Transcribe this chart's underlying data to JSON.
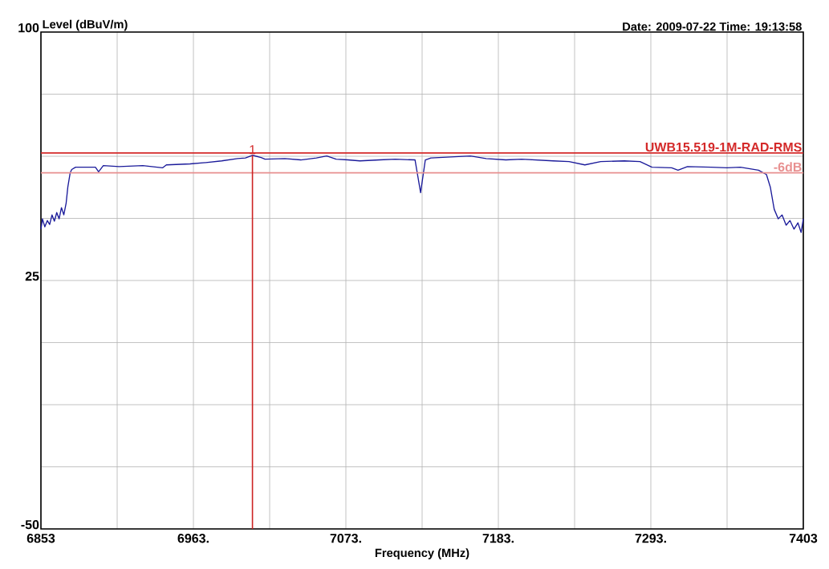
{
  "chart_data": {
    "type": "line",
    "ylabel": "Level (dBuV/m)",
    "xlabel": "Frequency (MHz)",
    "annotations": [
      "Date: 2009-07-22  Time: 19:13:58",
      {
        "text": "1",
        "x": 7005.6,
        "y": 62.8
      }
    ],
    "xlim": [
      6853,
      7403
    ],
    "ylim": [
      -50,
      100
    ],
    "xticks": [
      6853,
      {
        "value": 6908,
        "label": null
      },
      {
        "value": 6963,
        "label": "6963."
      },
      {
        "value": 7018,
        "label": null
      },
      {
        "value": 7073,
        "label": "7073."
      },
      {
        "value": 7128,
        "label": null
      },
      {
        "value": 7183,
        "label": "7183."
      },
      {
        "value": 7238,
        "label": null
      },
      {
        "value": 7293,
        "label": "7293."
      },
      {
        "value": 7348,
        "label": null
      },
      7403
    ],
    "yticks": [
      -50,
      {
        "value": -31.25,
        "label": null
      },
      {
        "value": -12.5,
        "label": null
      },
      {
        "value": 6.25,
        "label": null
      },
      25,
      {
        "value": 43.75,
        "label": null
      },
      {
        "value": 62.5,
        "label": null
      },
      {
        "value": 81.25,
        "label": null
      },
      100
    ],
    "grid": true,
    "series": [
      {
        "color": "#1a1a9a",
        "x": [
          6853,
          6854.1,
          6855.8,
          6857.6,
          6859.3,
          6861,
          6862.7,
          6864.4,
          6866.1,
          6867.8,
          6869.5,
          6871.2,
          6872.4,
          6874.1,
          6875.2,
          6878,
          6892.3,
          6894.6,
          6898,
          6909.4,
          6926.5,
          6940.7,
          6943.5,
          6960.6,
          6972,
          6983.4,
          6994.8,
          7000.5,
          7005.6,
          7011.9,
          7014.7,
          7029,
          7040.4,
          7051.7,
          7059.2,
          7066,
          7074.5,
          7083.1,
          7097.3,
          7108.7,
          7122.9,
          7126.9,
          7130.3,
          7134.3,
          7148.6,
          7162.8,
          7174.2,
          7188.4,
          7199.8,
          7222.6,
          7234,
          7245.4,
          7256.8,
          7273.8,
          7285.2,
          7293.8,
          7308,
          7312.6,
          7319.4,
          7336.5,
          7347.9,
          7357.6,
          7370.7,
          7376.4,
          7379.2,
          7382,
          7384.9,
          7387.7,
          7390.6,
          7393.4,
          7396.3,
          7399.1,
          7401.4,
          7403
        ],
        "values": [
          40.5,
          43.6,
          41.2,
          43.1,
          41.9,
          44.8,
          42.9,
          45.5,
          43.6,
          47,
          44.8,
          48.4,
          53.2,
          57.5,
          58.5,
          59.2,
          59.2,
          57.8,
          59.7,
          59.4,
          59.7,
          59,
          59.9,
          60.2,
          60.6,
          61.1,
          61.8,
          62,
          62.8,
          62.1,
          61.6,
          61.8,
          61.4,
          62,
          62.6,
          61.6,
          61.4,
          61.1,
          61.4,
          61.6,
          61.4,
          51.5,
          61.4,
          62,
          62.3,
          62.6,
          61.8,
          61.4,
          61.6,
          61.1,
          60.9,
          59.9,
          60.9,
          61.1,
          60.9,
          59.2,
          59,
          58.3,
          59.4,
          59.2,
          59,
          59.2,
          58.3,
          57,
          53.2,
          46.5,
          43.6,
          44.8,
          41.7,
          43.1,
          40.5,
          42.4,
          39.5,
          43.6
        ]
      }
    ],
    "ref_lines": [
      {
        "axis": "y",
        "value": 63.5,
        "label": "UWB15.519-1M-RAD-RMS",
        "color": "#d42a2a"
      },
      {
        "axis": "y",
        "value": 57.5,
        "label": "-6dB",
        "color": "#e89090"
      },
      {
        "axis": "x",
        "value": 7005.6,
        "color": "#cc2222"
      }
    ]
  }
}
